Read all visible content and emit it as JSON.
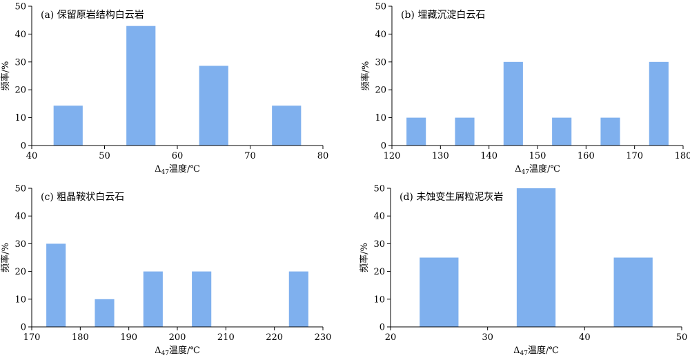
{
  "figure": {
    "background": "#ffffff",
    "bar_color": "#7fb0ee",
    "axis_color": "#000000"
  },
  "chart_data": [
    {
      "type": "bar",
      "title": "(a) 保留原岩结构白云岩",
      "xlabel_prefix": "Δ",
      "xlabel_sub": "47",
      "xlabel_suffix": "温度/℃",
      "ylabel": "频率/%",
      "xlim": [
        40,
        80
      ],
      "ylim": [
        0,
        50
      ],
      "xticks": [
        40,
        50,
        60,
        70,
        80
      ],
      "yticks": [
        0,
        10,
        20,
        30,
        40,
        50
      ],
      "bars": [
        {
          "x0": 43,
          "x1": 47,
          "value": 14.3
        },
        {
          "x0": 53,
          "x1": 57,
          "value": 42.9
        },
        {
          "x0": 63,
          "x1": 67,
          "value": 28.6
        },
        {
          "x0": 73,
          "x1": 77,
          "value": 14.3
        }
      ]
    },
    {
      "type": "bar",
      "title": "(b) 埋藏沉淀白云石",
      "xlabel_prefix": "Δ",
      "xlabel_sub": "47",
      "xlabel_suffix": "温度/℃",
      "ylabel": "频率/%",
      "xlim": [
        120,
        180
      ],
      "ylim": [
        0,
        50
      ],
      "xticks": [
        120,
        130,
        140,
        150,
        160,
        170,
        180
      ],
      "yticks": [
        0,
        10,
        20,
        30,
        40,
        50
      ],
      "bars": [
        {
          "x0": 123,
          "x1": 127,
          "value": 10
        },
        {
          "x0": 133,
          "x1": 137,
          "value": 10
        },
        {
          "x0": 143,
          "x1": 147,
          "value": 30
        },
        {
          "x0": 153,
          "x1": 157,
          "value": 10
        },
        {
          "x0": 163,
          "x1": 167,
          "value": 10
        },
        {
          "x0": 173,
          "x1": 177,
          "value": 30
        }
      ]
    },
    {
      "type": "bar",
      "title": "(c) 粗晶鞍状白云石",
      "xlabel_prefix": "Δ",
      "xlabel_sub": "47",
      "xlabel_suffix": "温度/℃",
      "ylabel": "频率/%",
      "xlim": [
        170,
        230
      ],
      "ylim": [
        0,
        50
      ],
      "xticks": [
        170,
        180,
        190,
        200,
        210,
        220,
        230
      ],
      "yticks": [
        0,
        10,
        20,
        30,
        40,
        50
      ],
      "bars": [
        {
          "x0": 173,
          "x1": 177,
          "value": 30
        },
        {
          "x0": 183,
          "x1": 187,
          "value": 10
        },
        {
          "x0": 193,
          "x1": 197,
          "value": 20
        },
        {
          "x0": 203,
          "x1": 207,
          "value": 20
        },
        {
          "x0": 223,
          "x1": 227,
          "value": 20
        }
      ]
    },
    {
      "type": "bar",
      "title": "(d) 未蚀变生屑粒泥灰岩",
      "xlabel_prefix": "Δ",
      "xlabel_sub": "47",
      "xlabel_suffix": "温度/℃",
      "ylabel": "频率/%",
      "xlim": [
        20,
        50
      ],
      "ylim": [
        0,
        50
      ],
      "xticks": [
        20,
        30,
        40,
        50
      ],
      "yticks": [
        0,
        10,
        20,
        30,
        40,
        50
      ],
      "bars": [
        {
          "x0": 23,
          "x1": 27,
          "value": 25
        },
        {
          "x0": 33,
          "x1": 37,
          "value": 50
        },
        {
          "x0": 43,
          "x1": 47,
          "value": 25
        }
      ]
    }
  ]
}
